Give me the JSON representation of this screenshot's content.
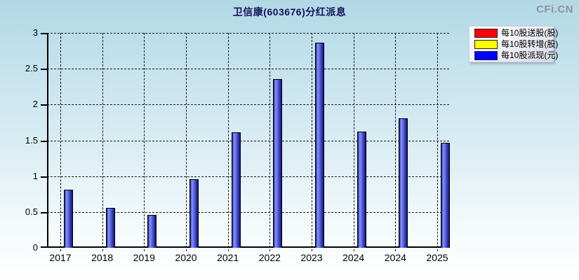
{
  "page": {
    "title": "卫信康(603676)分红派息",
    "brand": "CFi.CN"
  },
  "legend": {
    "position": "top-right",
    "items": [
      {
        "label": "每10股送股(股)",
        "color": "#ff0000"
      },
      {
        "label": "每10股转增(股)",
        "color": "#ffff00"
      },
      {
        "label": "每10股派现(元)",
        "color": "#0000ff"
      }
    ]
  },
  "chart_data": {
    "type": "bar",
    "title": "卫信康(603676)分红派息",
    "categories": [
      "2017",
      "2018",
      "2019",
      "2020",
      "2021",
      "2022",
      "2023",
      "2024",
      "2024",
      "2025"
    ],
    "series": [
      {
        "name": "每10股送股(股)",
        "color": "#ff0000",
        "values": [
          0,
          0,
          0,
          0,
          0,
          0,
          0,
          0,
          0,
          0
        ]
      },
      {
        "name": "每10股转增(股)",
        "color": "#ffff00",
        "values": [
          0,
          0,
          0,
          0,
          0,
          0,
          0,
          0,
          0,
          0
        ]
      },
      {
        "name": "每10股派现(元)",
        "color": "#0000ff",
        "values": [
          0.8,
          0.55,
          0.45,
          0.95,
          1.6,
          2.35,
          2.85,
          1.61,
          1.8,
          1.46
        ]
      }
    ],
    "xlabel": "",
    "ylabel": "",
    "ylim": [
      0,
      3
    ],
    "yticks": [
      0,
      0.5,
      1,
      1.5,
      2,
      2.5,
      3
    ],
    "grid": true,
    "legend_position": "top-right",
    "watermark": "CFi.CN"
  }
}
